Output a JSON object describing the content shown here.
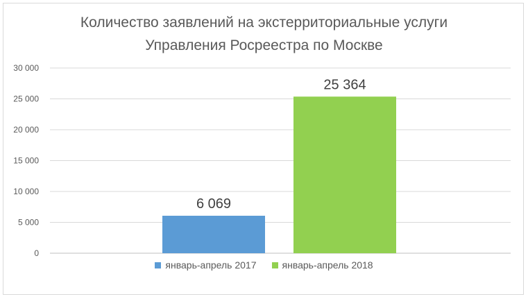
{
  "chart_data": {
    "type": "bar",
    "title_lines": [
      "Количество заявлений на экстерриториальные услуги",
      "Управления Росреестра по Москве"
    ],
    "series": [
      {
        "name": "январь-апрель 2017",
        "value": 6069,
        "label": "6 069",
        "color": "#5b9bd5"
      },
      {
        "name": "январь-апрель 2018",
        "value": 25364,
        "label": "25 364",
        "color": "#92d050"
      }
    ],
    "ylim": [
      0,
      30000
    ],
    "yticks": [
      {
        "value": 0,
        "label": "0"
      },
      {
        "value": 5000,
        "label": "5 000"
      },
      {
        "value": 10000,
        "label": "10 000"
      },
      {
        "value": 15000,
        "label": "15 000"
      },
      {
        "value": 20000,
        "label": "20 000"
      },
      {
        "value": 25000,
        "label": "25 000"
      },
      {
        "value": 30000,
        "label": "30 000"
      }
    ],
    "grid": true,
    "legend_position": "bottom"
  }
}
